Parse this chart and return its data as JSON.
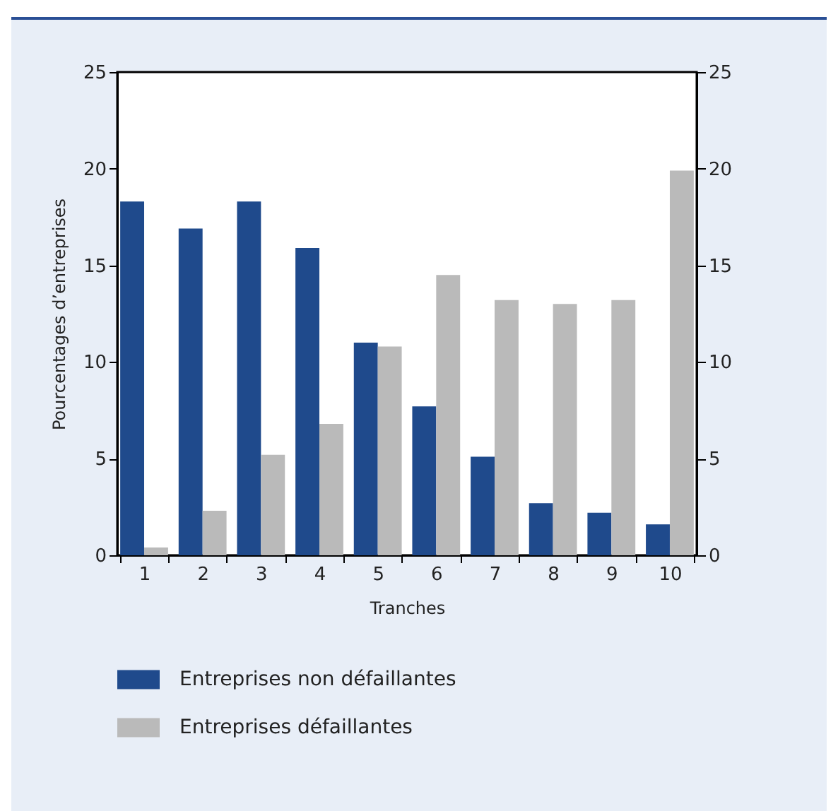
{
  "chart_data": {
    "type": "bar",
    "xlabel": "Tranches",
    "ylabel": "Pourcentages d’entreprises",
    "categories": [
      "1",
      "2",
      "3",
      "4",
      "5",
      "6",
      "7",
      "8",
      "9",
      "10"
    ],
    "series": [
      {
        "name": "Entreprises non défaillantes",
        "color": "#1f4a8c",
        "values": [
          18.3,
          16.9,
          18.3,
          15.9,
          11.0,
          7.7,
          5.1,
          2.7,
          2.2,
          1.6
        ]
      },
      {
        "name": "Entreprises défaillantes",
        "color": "#bababa",
        "values": [
          0.4,
          2.3,
          5.2,
          6.8,
          10.8,
          14.5,
          13.2,
          13.0,
          13.2,
          19.9
        ]
      }
    ],
    "ylim": [
      0,
      25
    ],
    "yticks": [
      0,
      5,
      10,
      15,
      20,
      25
    ],
    "y2lim": [
      0,
      25
    ],
    "y2ticks": [
      0,
      5,
      10,
      15,
      20,
      25
    ],
    "grid": false,
    "legend": "bottom"
  }
}
